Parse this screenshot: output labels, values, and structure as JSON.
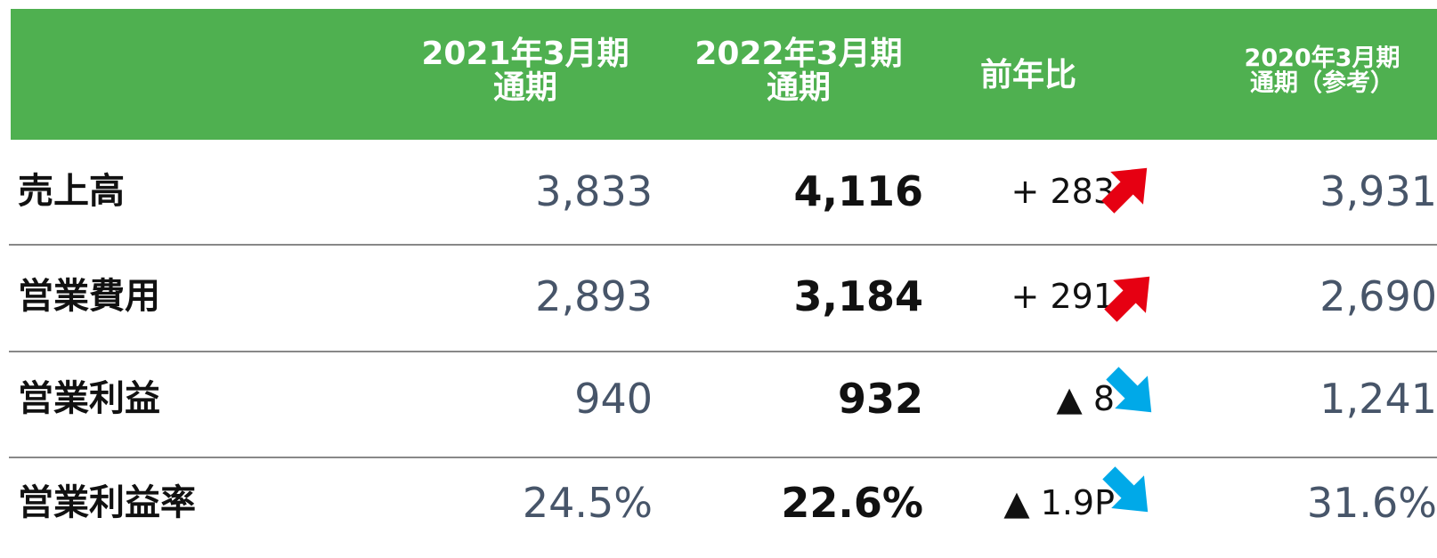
{
  "table": {
    "header": [
      [
        "2021年3月期",
        "通期"
      ],
      [
        "2022年3月期",
        "通期"
      ],
      [
        "前年比"
      ],
      [
        "2020年3月期",
        "通期（参考）"
      ]
    ],
    "rows": [
      [
        "売上高",
        "3,833",
        "4,116",
        "+ 283",
        "3,931"
      ],
      [
        "営業費用",
        "2,893",
        "3,184",
        "+ 291",
        "2,690"
      ],
      [
        "営業利益",
        "940",
        "932",
        "▲ 8",
        "1,241"
      ],
      [
        "営業利益率",
        "24.5%",
        "22.6%",
        "▲ 1.9P",
        "31.6%"
      ]
    ]
  }
}
